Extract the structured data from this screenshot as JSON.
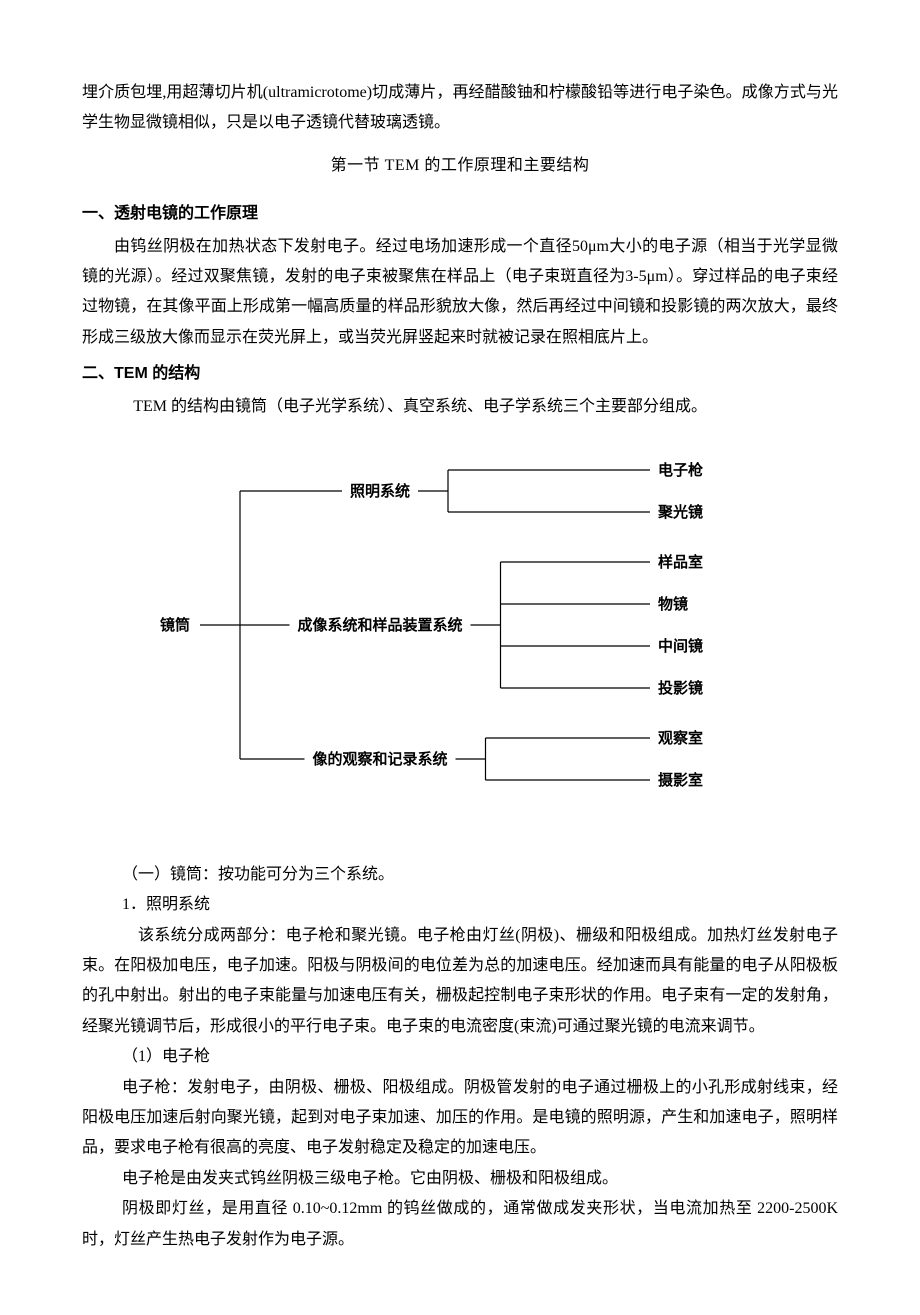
{
  "intro_para": "埋介质包埋,用超薄切片机(ultramicrotome)切成薄片，再经醋酸铀和柠檬酸铅等进行电子染色。成像方式与光学生物显微镜相似，只是以电子透镜代替玻璃透镜。",
  "section_title": "第一节    TEM 的工作原理和主要结构",
  "h1": "一、透射电镜的工作原理",
  "p1": "由钨丝阴极在加热状态下发射电子。经过电场加速形成一个直径50μm大小的电子源（相当于光学显微镜的光源）。经过双聚焦镜，发射的电子束被聚焦在样品上（电子束斑直径为3-5μm）。穿过样品的电子束经过物镜，在其像平面上形成第一幅高质量的样品形貌放大像，然后再经过中间镜和投影镜的两次放大，最终形成三级放大像而显示在荧光屏上，或当荧光屏竖起来时就被记录在照相底片上。",
  "h2": "二、TEM 的结构",
  "p2": "TEM 的结构由镜筒（电子光学系统）、真空系统、电子学系统三个主要部分组成。",
  "diagram": {
    "root": "镜筒",
    "branches": [
      {
        "label": "照明系统",
        "children": [
          "电子枪",
          "聚光镜"
        ]
      },
      {
        "label": "成像系统和样品装置系统",
        "children": [
          "样品室",
          "物镜",
          "中间镜",
          "投影镜"
        ]
      },
      {
        "label": "像的观察和记录系统",
        "children": [
          "观察室",
          "摄影室"
        ]
      }
    ],
    "font": {
      "bold_size": 15,
      "leaf_size": 15,
      "family": "SimHei"
    },
    "stroke": "#000000",
    "stroke_width": 1.2
  },
  "p3": "（一）镜筒：按功能可分为三个系统。",
  "p4": "1．照明系统",
  "p5": "该系统分成两部分：电子枪和聚光镜。电子枪由灯丝(阴极)、栅级和阳极组成。加热灯丝发射电子束。在阳极加电压，电子加速。阳极与阴极间的电位差为总的加速电压。经加速而具有能量的电子从阳极板的孔中射出。射出的电子束能量与加速电压有关，栅极起控制电子束形状的作用。电子束有一定的发射角，经聚光镜调节后，形成很小的平行电子束。电子束的电流密度(束流)可通过聚光镜的电流来调节。",
  "p6": "（1）电子枪",
  "p7": "电子枪：发射电子，由阴极、栅极、阳极组成。阴极管发射的电子通过栅极上的小孔形成射线束，经阳极电压加速后射向聚光镜，起到对电子束加速、加压的作用。是电镜的照明源，产生和加速电子，照明样品，要求电子枪有很高的亮度、电子发射稳定及稳定的加速电压。",
  "p8": "电子枪是由发夹式钨丝阴极三级电子枪。它由阴极、栅极和阳极组成。",
  "p9": "阴极即灯丝，是用直径 0.10~0.12mm 的钨丝做成的，通常做成发夹形状，当电流加热至 2200-2500K时，灯丝产生热电子发射作为电子源。"
}
